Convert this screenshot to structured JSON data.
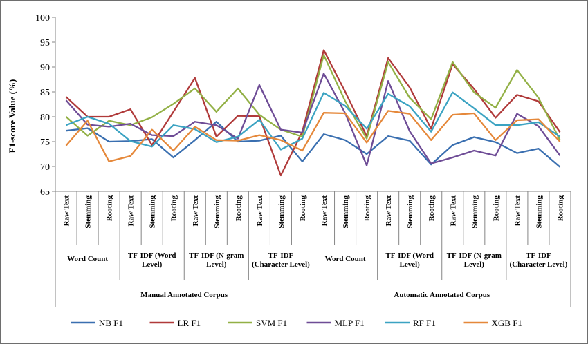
{
  "chart_data": {
    "type": "line",
    "title": "",
    "ylabel": "F1-score Value (%)",
    "ylim": [
      65,
      100
    ],
    "yticks": [
      65,
      70,
      75,
      80,
      85,
      90,
      95,
      100
    ],
    "grid": false,
    "legend_position": "bottom",
    "categories": [
      "Raw Text",
      "Stemming",
      "Rooting",
      "Raw Text",
      "Stemming",
      "Rooting",
      "Raw Text",
      "Stemming",
      "Rooting",
      "Raw Text",
      "Stemming",
      "Rooting",
      "Raw Text",
      "Stemming",
      "Rooting",
      "Raw Text",
      "Stemming",
      "Rooting",
      "Raw Text",
      "Stemming",
      "Rooting",
      "Raw Text",
      "Stemming",
      "Rooting"
    ],
    "groups": [
      {
        "label": [
          "Word Count"
        ]
      },
      {
        "label": [
          "TF-IDF (Word",
          "Level)"
        ]
      },
      {
        "label": [
          "TF-IDF (N-gram",
          "Level)"
        ]
      },
      {
        "label": [
          "TF-IDF",
          "(Character Level)"
        ]
      },
      {
        "label": [
          "Word Count"
        ]
      },
      {
        "label": [
          "TF-IDF (Word",
          "Level)"
        ]
      },
      {
        "label": [
          "TF-IDF (N-gram",
          "Level)"
        ]
      },
      {
        "label": [
          "TF-IDF",
          "(Character Level)"
        ]
      }
    ],
    "corpora": [
      "Manual Annotated Corpus",
      "Automatic Annotated Corpus"
    ],
    "series": [
      {
        "name": "NB F1",
        "color": "#3a6fb0",
        "values": [
          77.2,
          77.7,
          75.0,
          75.1,
          75.5,
          71.8,
          75.3,
          79.0,
          75.0,
          75.2,
          76.2,
          71.0,
          76.5,
          75.3,
          72.5,
          76.1,
          75.2,
          70.4,
          74.3,
          75.9,
          74.9,
          72.7,
          73.6,
          69.9
        ]
      },
      {
        "name": "LR F1",
        "color": "#b03a3a",
        "values": [
          84.0,
          80.0,
          80.0,
          81.5,
          74.3,
          81.0,
          87.8,
          76.0,
          80.2,
          80.1,
          68.2,
          77.0,
          93.4,
          85.0,
          76.1,
          91.8,
          85.9,
          77.6,
          90.6,
          85.6,
          79.8,
          84.4,
          83.1,
          76.9
        ]
      },
      {
        "name": "SVM F1",
        "color": "#92b045",
        "values": [
          80.0,
          76.2,
          79.2,
          78.3,
          79.9,
          82.6,
          85.7,
          81.0,
          85.7,
          80.4,
          77.4,
          76.0,
          92.4,
          83.1,
          75.6,
          91.0,
          83.8,
          79.5,
          91.0,
          84.9,
          81.8,
          89.4,
          83.8,
          75.3
        ]
      },
      {
        "name": "MLP F1",
        "color": "#6e4c96",
        "values": [
          83.3,
          78.4,
          78.0,
          78.6,
          76.3,
          76.1,
          79.0,
          78.3,
          75.6,
          86.4,
          77.4,
          76.8,
          88.7,
          80.7,
          70.2,
          87.2,
          77.1,
          70.6,
          71.8,
          73.2,
          72.2,
          80.6,
          78.1,
          72.2
        ]
      },
      {
        "name": "RF F1",
        "color": "#3ba3c2",
        "values": [
          78.3,
          80.0,
          78.6,
          75.1,
          74.0,
          78.3,
          77.5,
          74.9,
          76.0,
          79.4,
          73.4,
          75.6,
          84.8,
          82.2,
          77.6,
          84.6,
          82.1,
          77.0,
          84.9,
          81.7,
          78.3,
          78.3,
          78.9,
          76.0
        ]
      },
      {
        "name": "XGB F1",
        "color": "#e5883a",
        "values": [
          74.2,
          79.2,
          71.0,
          72.1,
          77.4,
          73.2,
          78.0,
          75.3,
          75.2,
          76.3,
          75.3,
          73.2,
          80.8,
          80.7,
          74.8,
          81.2,
          80.6,
          75.3,
          80.4,
          80.7,
          75.3,
          79.3,
          79.5,
          75.0
        ]
      }
    ]
  }
}
